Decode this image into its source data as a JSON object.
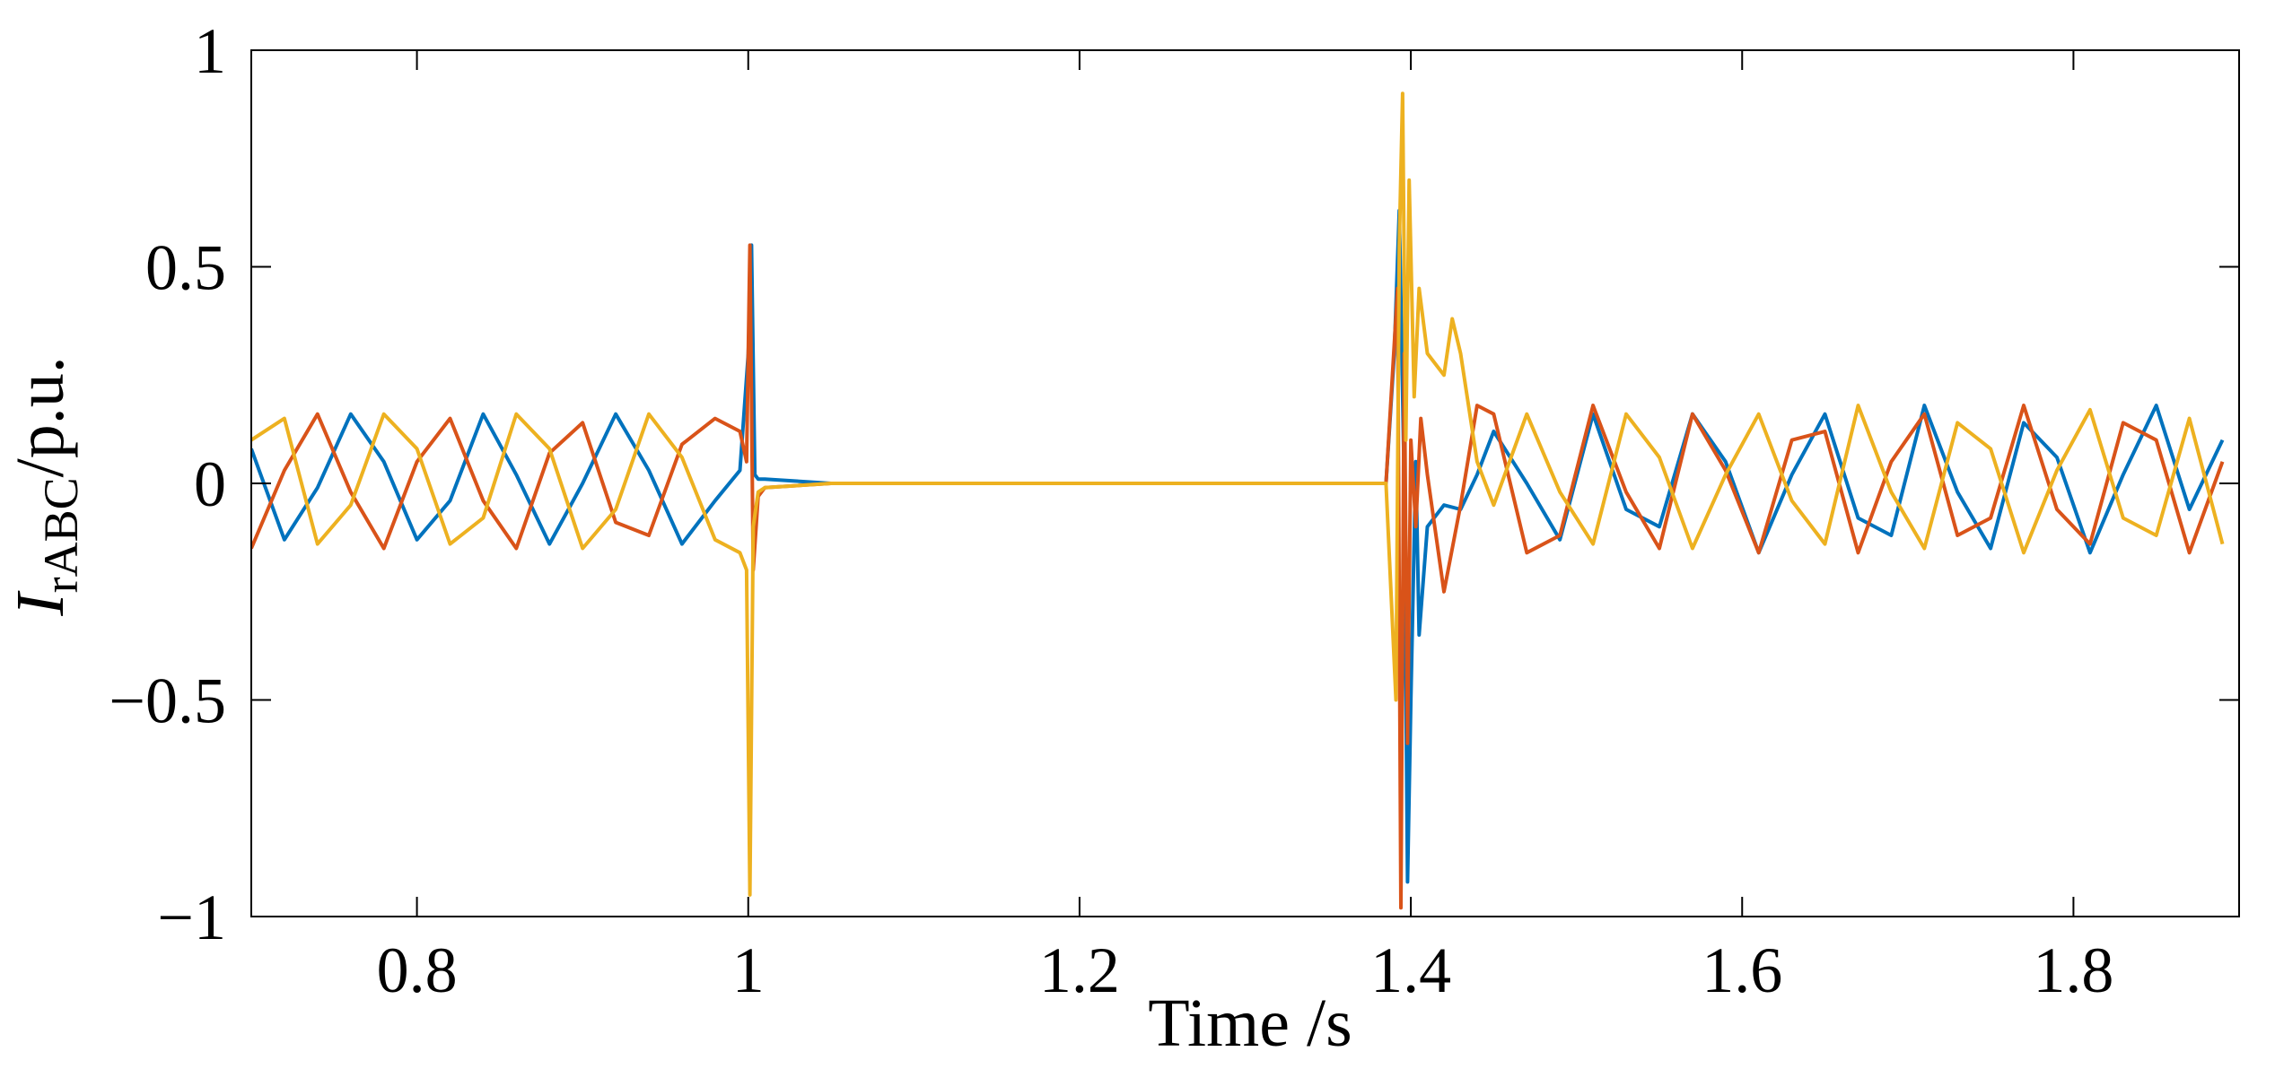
{
  "chart_data": {
    "type": "line",
    "title": "",
    "xlabel": "Time /s",
    "ylabel": {
      "main": "I",
      "subscript": "rABC",
      "suffix": "/p.u."
    },
    "xlim": [
      0.7,
      1.9
    ],
    "ylim": [
      -1,
      1
    ],
    "x_ticks": [
      0.8,
      1,
      1.2,
      1.4,
      1.6,
      1.8
    ],
    "x_tick_labels": [
      "0.8",
      "1",
      "1.2",
      "1.4",
      "1.6",
      "1.8"
    ],
    "y_ticks": [
      1,
      0.5,
      0,
      -0.5,
      -1
    ],
    "y_tick_labels": [
      "1",
      "0.5",
      "0",
      "−0.5",
      "−1"
    ],
    "grid": false,
    "legend": "none",
    "series": [
      {
        "color": "#0072BD",
        "x": [
          0.7,
          0.72,
          0.74,
          0.76,
          0.78,
          0.8,
          0.82,
          0.84,
          0.86,
          0.88,
          0.9,
          0.92,
          0.94,
          0.96,
          0.98,
          0.995,
          1.0,
          1.002,
          1.004,
          1.006,
          1.01,
          1.05,
          1.1,
          1.2,
          1.3,
          1.385,
          1.39,
          1.393,
          1.396,
          1.398,
          1.4,
          1.403,
          1.405,
          1.41,
          1.42,
          1.43,
          1.44,
          1.45,
          1.47,
          1.49,
          1.51,
          1.53,
          1.55,
          1.57,
          1.59,
          1.61,
          1.63,
          1.65,
          1.67,
          1.69,
          1.71,
          1.73,
          1.75,
          1.77,
          1.79,
          1.81,
          1.83,
          1.85,
          1.87,
          1.89
        ],
        "y": [
          0.08,
          -0.13,
          -0.01,
          0.16,
          0.05,
          -0.13,
          -0.04,
          0.16,
          0.02,
          -0.14,
          0.0,
          0.16,
          0.03,
          -0.14,
          -0.04,
          0.03,
          0.3,
          0.55,
          0.02,
          0.01,
          0.01,
          0.0,
          0.0,
          0.0,
          0.0,
          0.0,
          0.3,
          0.63,
          0.0,
          -0.92,
          -0.5,
          0.05,
          -0.35,
          -0.1,
          -0.05,
          -0.06,
          0.02,
          0.12,
          0.0,
          -0.13,
          0.16,
          -0.06,
          -0.1,
          0.16,
          0.05,
          -0.16,
          0.02,
          0.16,
          -0.08,
          -0.12,
          0.18,
          -0.02,
          -0.15,
          0.14,
          0.06,
          -0.16,
          0.02,
          0.18,
          -0.06,
          0.1
        ]
      },
      {
        "color": "#D95319",
        "x": [
          0.7,
          0.72,
          0.74,
          0.76,
          0.78,
          0.8,
          0.82,
          0.84,
          0.86,
          0.88,
          0.9,
          0.92,
          0.94,
          0.96,
          0.98,
          0.995,
          0.999,
          1.001,
          1.003,
          1.006,
          1.01,
          1.05,
          1.1,
          1.2,
          1.3,
          1.385,
          1.392,
          1.394,
          1.396,
          1.398,
          1.4,
          1.403,
          1.406,
          1.41,
          1.42,
          1.43,
          1.44,
          1.45,
          1.47,
          1.49,
          1.51,
          1.53,
          1.55,
          1.57,
          1.59,
          1.61,
          1.63,
          1.65,
          1.67,
          1.69,
          1.71,
          1.73,
          1.75,
          1.77,
          1.79,
          1.81,
          1.83,
          1.85,
          1.87,
          1.89
        ],
        "y": [
          -0.15,
          0.03,
          0.16,
          -0.02,
          -0.15,
          0.05,
          0.15,
          -0.04,
          -0.15,
          0.07,
          0.14,
          -0.09,
          -0.12,
          0.09,
          0.15,
          0.12,
          0.05,
          0.55,
          -0.2,
          -0.03,
          -0.01,
          0.0,
          0.0,
          0.0,
          0.0,
          0.0,
          0.45,
          -0.98,
          0.3,
          -0.6,
          0.1,
          -0.1,
          0.15,
          0.02,
          -0.25,
          -0.05,
          0.18,
          0.16,
          -0.16,
          -0.12,
          0.18,
          -0.02,
          -0.15,
          0.16,
          0.03,
          -0.16,
          0.1,
          0.12,
          -0.16,
          0.05,
          0.16,
          -0.12,
          -0.08,
          0.18,
          -0.06,
          -0.14,
          0.14,
          0.1,
          -0.16,
          0.05
        ]
      },
      {
        "color": "#EDB120",
        "x": [
          0.7,
          0.72,
          0.74,
          0.76,
          0.78,
          0.8,
          0.82,
          0.84,
          0.86,
          0.88,
          0.9,
          0.92,
          0.94,
          0.96,
          0.98,
          0.995,
          0.999,
          1.001,
          1.003,
          1.006,
          1.01,
          1.05,
          1.1,
          1.2,
          1.3,
          1.385,
          1.391,
          1.393,
          1.395,
          1.397,
          1.399,
          1.402,
          1.405,
          1.41,
          1.42,
          1.425,
          1.43,
          1.44,
          1.45,
          1.47,
          1.49,
          1.51,
          1.53,
          1.55,
          1.57,
          1.59,
          1.61,
          1.63,
          1.65,
          1.67,
          1.69,
          1.71,
          1.73,
          1.75,
          1.77,
          1.79,
          1.81,
          1.83,
          1.85,
          1.87,
          1.89
        ],
        "y": [
          0.1,
          0.15,
          -0.14,
          -0.05,
          0.16,
          0.08,
          -0.14,
          -0.08,
          0.16,
          0.08,
          -0.15,
          -0.06,
          0.16,
          0.06,
          -0.13,
          -0.16,
          -0.2,
          -0.95,
          -0.1,
          -0.02,
          -0.01,
          0.0,
          0.0,
          0.0,
          0.0,
          0.0,
          -0.5,
          0.55,
          0.9,
          0.1,
          0.7,
          0.2,
          0.45,
          0.3,
          0.25,
          0.38,
          0.3,
          0.05,
          -0.05,
          0.16,
          -0.02,
          -0.14,
          0.16,
          0.06,
          -0.15,
          0.02,
          0.16,
          -0.04,
          -0.14,
          0.18,
          -0.02,
          -0.15,
          0.14,
          0.08,
          -0.16,
          0.03,
          0.17,
          -0.08,
          -0.12,
          0.15,
          -0.14
        ]
      }
    ]
  }
}
